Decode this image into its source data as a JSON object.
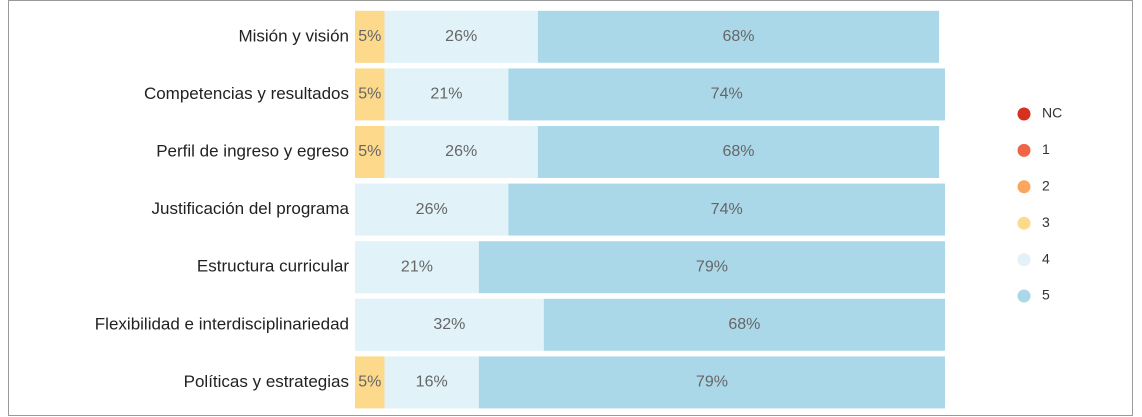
{
  "chart_data": {
    "type": "stacked-barh",
    "categories": [
      "Misión y visión",
      "Competencias y resultados",
      "Perfil de ingreso y egreso",
      "Justificación del programa",
      "Estructura curricular",
      "Flexibilidad e interdisciplinariedad",
      "Políticas y estrategias"
    ],
    "series": [
      {
        "name": "NC",
        "color": "#d7301f",
        "values": [
          0,
          0,
          0,
          0,
          0,
          0,
          0
        ]
      },
      {
        "name": "1",
        "color": "#ef6548",
        "values": [
          0,
          0,
          0,
          0,
          0,
          0,
          0
        ]
      },
      {
        "name": "2",
        "color": "#fca55d",
        "values": [
          0,
          0,
          0,
          0,
          0,
          0,
          0
        ]
      },
      {
        "name": "3",
        "color": "#fcd98b",
        "values": [
          5,
          5,
          5,
          0,
          0,
          0,
          5
        ],
        "value_labels": [
          "5%",
          "5%",
          "5%",
          null,
          null,
          null,
          "5%"
        ]
      },
      {
        "name": "4",
        "color": "#e1f2f8",
        "values": [
          26,
          21,
          26,
          26,
          21,
          32,
          16
        ],
        "value_labels": [
          "26%",
          "21%",
          "26%",
          "26%",
          "21%",
          "32%",
          "16%"
        ]
      },
      {
        "name": "5",
        "color": "#abd8e8",
        "values": [
          68,
          74,
          68,
          74,
          79,
          68,
          79
        ],
        "value_labels": [
          "68%",
          "74%",
          "68%",
          "74%",
          "79%",
          "68%",
          "79%"
        ]
      }
    ],
    "xlim": [
      0,
      100
    ],
    "legend": "right"
  }
}
